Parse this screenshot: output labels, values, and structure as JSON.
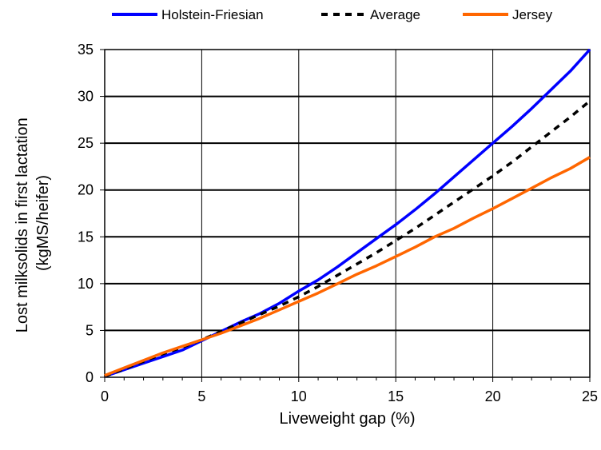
{
  "chart_data": {
    "type": "line",
    "xlabel": "Liveweight gap (%)",
    "ylabel_lines": [
      "Lost milksolids in first lactation",
      "(kgMS/heifer)"
    ],
    "xlim": [
      0,
      25
    ],
    "ylim": [
      0,
      35
    ],
    "xticks": [
      0,
      5,
      10,
      15,
      20,
      25
    ],
    "yticks": [
      0,
      5,
      10,
      15,
      20,
      25,
      30,
      35
    ],
    "grid": true,
    "legend_position": "top",
    "series": [
      {
        "name": "Holstein-Friesian",
        "color": "#0000ff",
        "dash": "solid",
        "x": [
          0,
          1,
          2,
          3,
          4,
          5,
          6,
          7,
          8,
          9,
          10,
          11,
          12,
          13,
          14,
          15,
          16,
          17,
          18,
          19,
          20,
          21,
          22,
          23,
          24,
          25
        ],
        "y": [
          0.1,
          0.8,
          1.5,
          2.2,
          2.9,
          3.9,
          4.9,
          5.9,
          6.8,
          7.9,
          9.2,
          10.4,
          11.8,
          13.3,
          14.8,
          16.3,
          17.9,
          19.6,
          21.4,
          23.2,
          25.0,
          26.8,
          28.7,
          30.7,
          32.7,
          35.0
        ]
      },
      {
        "name": "Average",
        "color": "#000000",
        "dash": "dashed",
        "x": [
          0,
          1,
          2,
          3,
          4,
          5,
          6,
          7,
          8,
          9,
          10,
          11,
          12,
          13,
          14,
          15,
          16,
          17,
          18,
          19,
          20,
          21,
          22,
          23,
          24,
          25
        ],
        "y": [
          0.1,
          0.9,
          1.7,
          2.5,
          3.2,
          4.0,
          4.9,
          5.8,
          6.7,
          7.6,
          8.6,
          9.7,
          10.9,
          12.1,
          13.3,
          14.6,
          15.9,
          17.3,
          18.7,
          20.1,
          21.5,
          23.0,
          24.6,
          26.2,
          27.8,
          29.5
        ]
      },
      {
        "name": "Jersey",
        "color": "#ff6600",
        "dash": "solid",
        "x": [
          0,
          1,
          2,
          3,
          4,
          5,
          6,
          7,
          8,
          9,
          10,
          11,
          12,
          13,
          14,
          15,
          16,
          17,
          18,
          19,
          20,
          21,
          22,
          23,
          24,
          25
        ],
        "y": [
          0.2,
          1.0,
          1.8,
          2.6,
          3.3,
          4.0,
          4.7,
          5.5,
          6.3,
          7.2,
          8.1,
          9.0,
          10.0,
          11.0,
          11.9,
          12.9,
          13.9,
          15.0,
          15.9,
          17.0,
          18.0,
          19.1,
          20.2,
          21.3,
          22.3,
          23.5
        ]
      }
    ]
  }
}
